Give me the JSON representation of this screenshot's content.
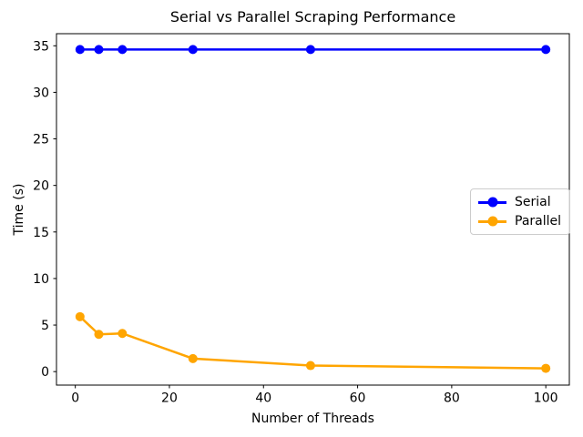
{
  "chart_data": {
    "type": "line",
    "title": "Serial vs Parallel Scraping Performance",
    "xlabel": "Number of Threads",
    "ylabel": "Time (s)",
    "x": [
      1,
      5,
      10,
      25,
      50,
      100
    ],
    "series": [
      {
        "name": "Serial",
        "color": "#0000ff",
        "values": [
          34.6,
          34.6,
          34.6,
          34.6,
          34.6,
          34.6
        ]
      },
      {
        "name": "Parallel",
        "color": "#ffa500",
        "values": [
          5.9,
          4.0,
          4.1,
          1.4,
          0.65,
          0.35
        ]
      }
    ],
    "xticks": [
      0,
      20,
      40,
      60,
      80,
      100
    ],
    "yticks": [
      0,
      5,
      10,
      15,
      20,
      25,
      30,
      35
    ],
    "xlim": [
      -4.0,
      105.0
    ],
    "ylim": [
      -1.45,
      36.3
    ],
    "grid": false,
    "marker": "o",
    "legend_position": "center right",
    "axis_color": "#000000",
    "background_color": "#ffffff"
  }
}
